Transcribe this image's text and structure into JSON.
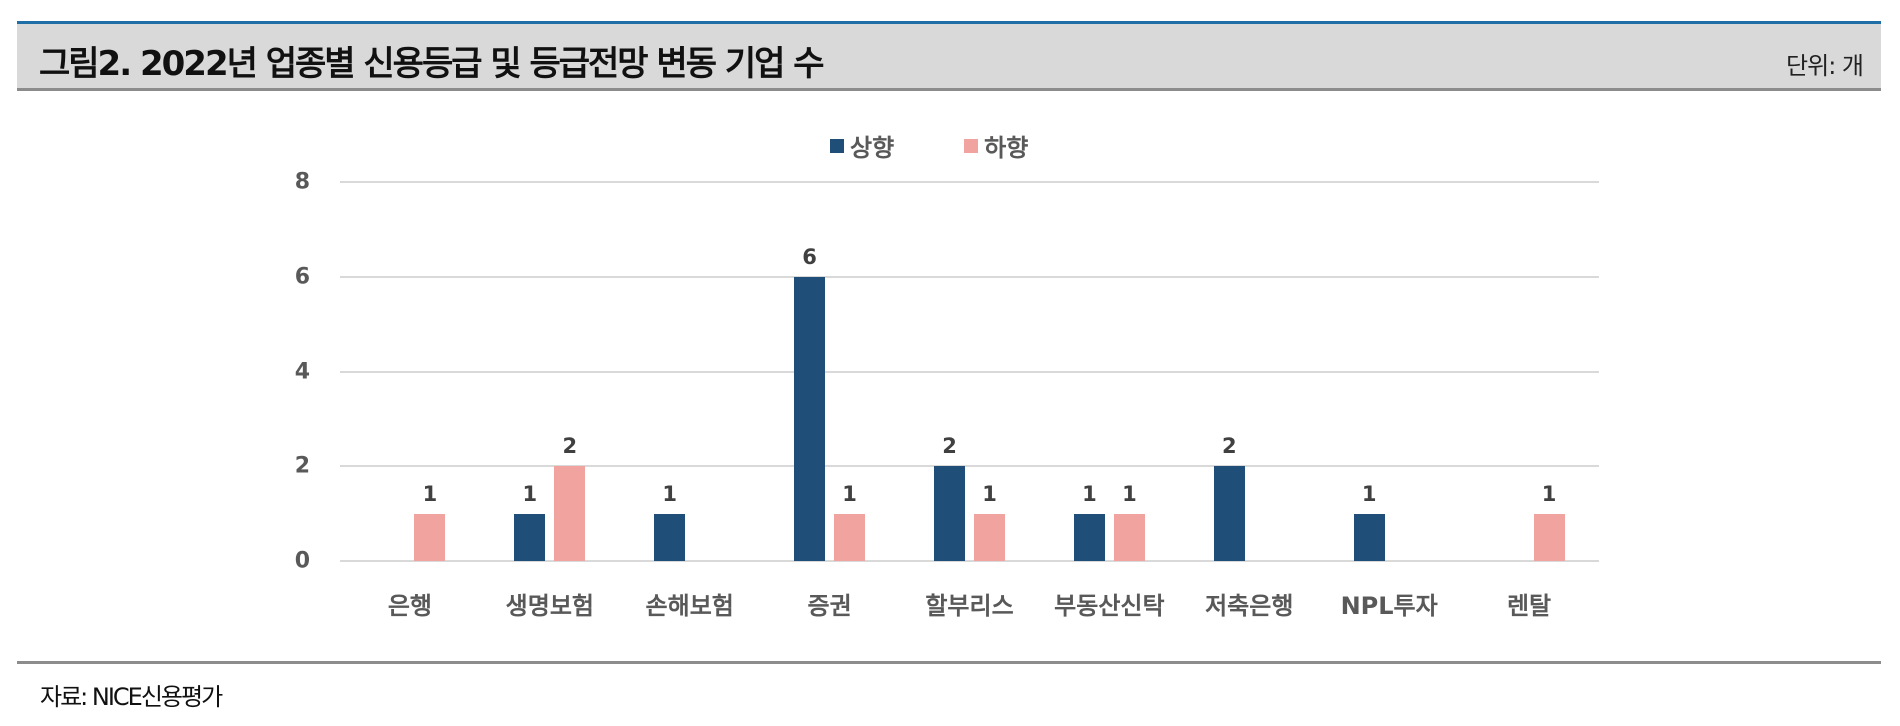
{
  "header": {
    "title": "그림2. 2022년 업종별 신용등급 및 등급전망 변동 기업 수",
    "unit": "단위: 개"
  },
  "footer": {
    "source": "자료: NICE신용평가"
  },
  "colors": {
    "upgrade": "#1F4E79",
    "downgrade": "#F1A3A0",
    "grid": "#D9D9D9",
    "title_bar_bg": "#D9D9D9",
    "title_bar_top_border": "#1F6FA6"
  },
  "chart_data": {
    "type": "bar",
    "title": "그림2. 2022년 업종별 신용등급 및 등급전망 변동 기업 수",
    "unit": "단위: 개",
    "xlabel": "",
    "ylabel": "",
    "ylim": [
      0,
      8
    ],
    "yticks": [
      0,
      2,
      4,
      6,
      8
    ],
    "grid": true,
    "legend_position": "top",
    "categories": [
      "은행",
      "생명보험",
      "손해보험",
      "증권",
      "할부리스",
      "부동산신탁",
      "저축은행",
      "NPL투자",
      "렌탈"
    ],
    "series": [
      {
        "name": "상향",
        "color": "#1F4E79",
        "values": [
          0,
          1,
          1,
          6,
          2,
          1,
          2,
          1,
          0
        ]
      },
      {
        "name": "하향",
        "color": "#F1A3A0",
        "values": [
          1,
          2,
          0,
          1,
          1,
          1,
          0,
          0,
          1
        ]
      }
    ],
    "data_labels": {
      "상향": [
        null,
        "1",
        "1",
        "6",
        "2",
        "1",
        "2",
        "1",
        null
      ],
      "하향": [
        "1",
        "2",
        null,
        "1",
        "1",
        "1",
        null,
        null,
        "1"
      ]
    },
    "source": "자료: NICE신용평가"
  }
}
